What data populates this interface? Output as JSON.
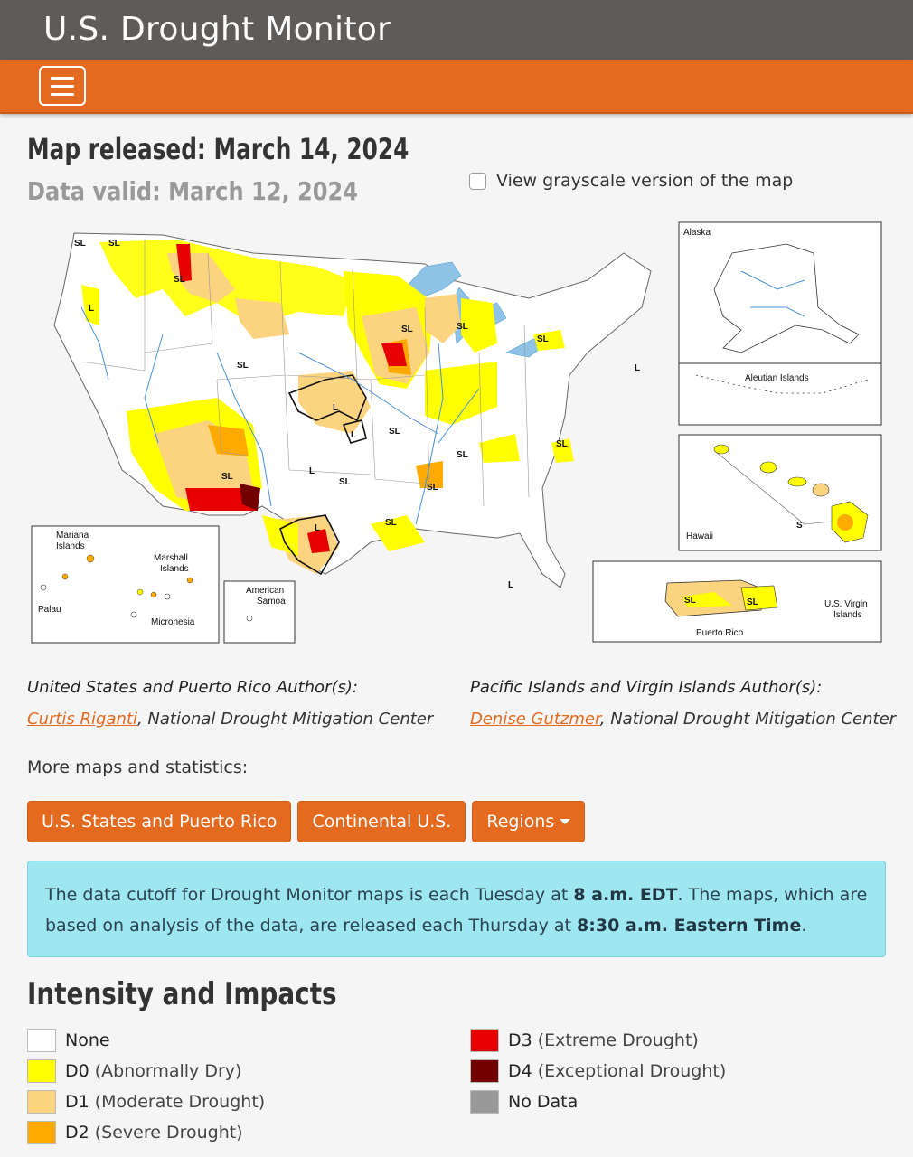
{
  "app": {
    "title": "U.S. Drought Monitor"
  },
  "header": {
    "released": "Map released: March 14, 2024",
    "valid": "Data valid: March 12, 2024",
    "grayscale_label": "View grayscale version of the map"
  },
  "map": {
    "insets": {
      "alaska": "Alaska",
      "aleutian": "Aleutian Islands",
      "hawaii": "Hawaii",
      "puerto_rico": "Puerto Rico",
      "usvi_1": "U.S. Virgin",
      "usvi_2": "Islands",
      "mariana_1": "Mariana",
      "mariana_2": "Islands",
      "marshall_1": "Marshall",
      "marshall_2": "Islands",
      "palau": "Palau",
      "micronesia": "Micronesia",
      "american_samoa_1": "American",
      "american_samoa_2": "Samoa"
    },
    "labels": {
      "sl": "SL",
      "l": "L",
      "s": "S"
    },
    "colors": {
      "none": "#ffffff",
      "d0": "#ffff00",
      "d1": "#fcd37f",
      "d2": "#ffaa00",
      "d3": "#e60000",
      "d4": "#730000",
      "nodata": "#999999",
      "water": "#8ec3e6",
      "river": "#4a90d9"
    }
  },
  "authors": {
    "left_heading": "United States and Puerto Rico Author(s):",
    "left_name": "Curtis Riganti",
    "left_org": ", National Drought Mitigation Center",
    "right_heading": "Pacific Islands and Virgin Islands Author(s):",
    "right_name": "Denise Gutzmer",
    "right_org": ", National Drought Mitigation Center"
  },
  "more": {
    "label": "More maps and statistics:",
    "buttons": [
      "U.S. States and Puerto Rico",
      "Continental U.S.",
      "Regions"
    ]
  },
  "notice": {
    "p1": "The data cutoff for Drought Monitor maps is each Tuesday at ",
    "t1": "8 a.m. EDT",
    "p2": ". The maps, which are based on analysis of the data, are released each Thursday at ",
    "t2": "8:30 a.m. Eastern Time",
    "p3": "."
  },
  "intensity": {
    "title": "Intensity and Impacts",
    "left": [
      {
        "code": "None",
        "desc": "",
        "color": "#ffffff"
      },
      {
        "code": "D0",
        "desc": "(Abnormally Dry)",
        "color": "#ffff00"
      },
      {
        "code": "D1",
        "desc": "(Moderate Drought)",
        "color": "#fcd37f"
      },
      {
        "code": "D2",
        "desc": "(Severe Drought)",
        "color": "#ffaa00"
      }
    ],
    "right": [
      {
        "code": "D3",
        "desc": "(Extreme Drought)",
        "color": "#e60000"
      },
      {
        "code": "D4",
        "desc": "(Exceptional Drought)",
        "color": "#730000"
      },
      {
        "code": "No Data",
        "desc": "",
        "color": "#999999"
      }
    ]
  }
}
